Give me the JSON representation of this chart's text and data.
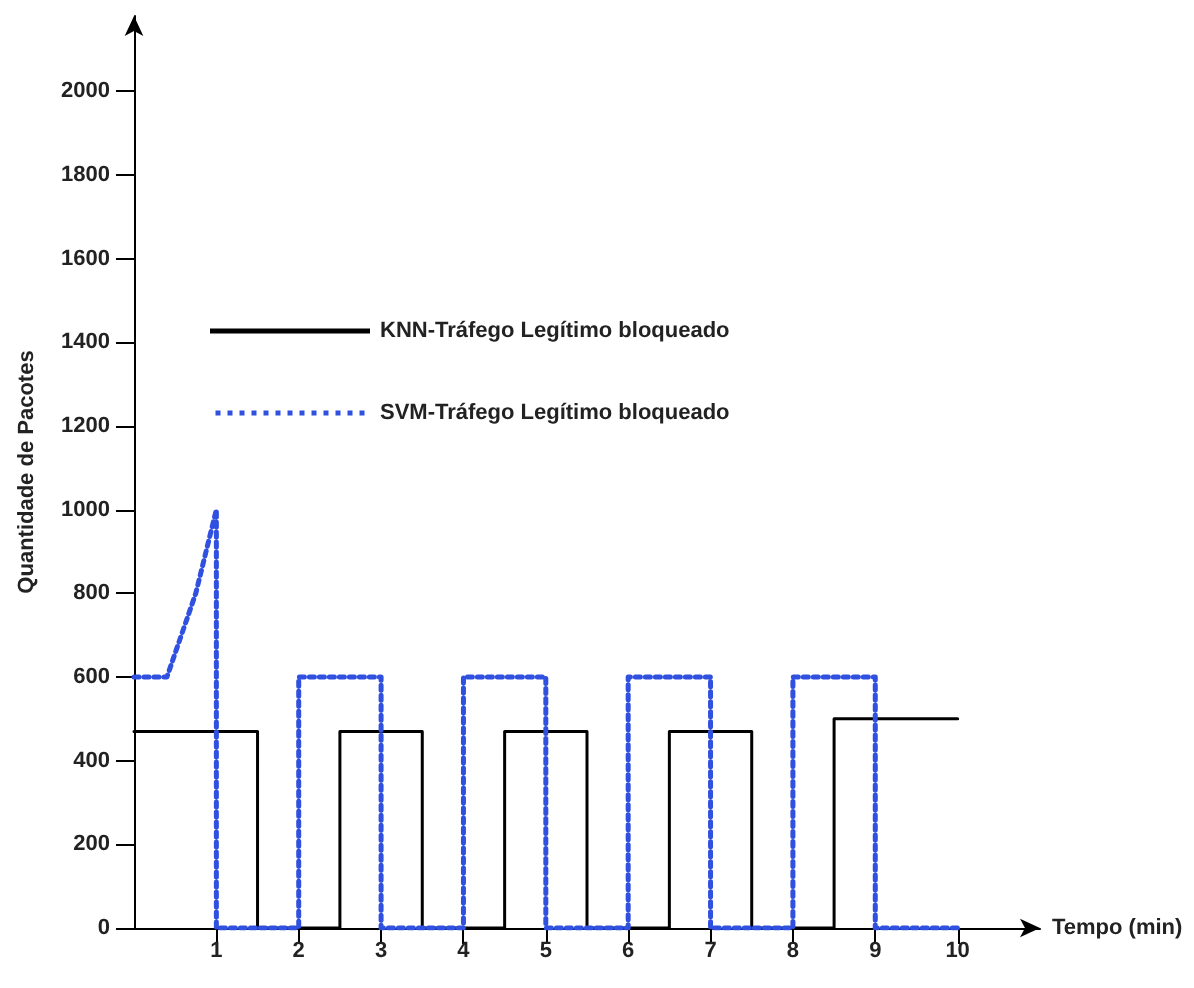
{
  "chart_data": {
    "type": "line",
    "xlabel": "Tempo (min)",
    "ylabel": "Quantidade de Pacotes",
    "series": [
      {
        "name": "KNN-Tráfego Legítimo bloqueado",
        "color": "#000000",
        "line_style": "solid",
        "x": [
          0,
          1.5,
          1.5,
          2.5,
          2.5,
          3.5,
          3.5,
          4.5,
          4.5,
          5.5,
          5.5,
          6.5,
          6.5,
          7.5,
          7.5,
          8.5,
          8.5,
          10
        ],
        "values": [
          470,
          470,
          0,
          0,
          470,
          470,
          0,
          0,
          470,
          470,
          0,
          0,
          470,
          470,
          0,
          0,
          500,
          500
        ]
      },
      {
        "name": "SVM-Tráfego Legítimo bloqueado",
        "color": "#3050e0",
        "line_style": "dotted",
        "x": [
          0,
          0.4,
          0.75,
          1,
          1,
          2,
          2,
          3,
          3,
          4,
          4,
          5,
          5,
          6,
          6,
          7,
          7,
          8,
          8,
          9,
          9,
          10
        ],
        "values": [
          600,
          600,
          800,
          1000,
          0,
          0,
          600,
          600,
          0,
          0,
          600,
          600,
          0,
          0,
          600,
          600,
          0,
          0,
          600,
          600,
          0,
          0
        ]
      }
    ],
    "xlim": [
      0,
      11
    ],
    "xticks": [
      1,
      2,
      3,
      4,
      5,
      6,
      7,
      8,
      9,
      10
    ],
    "ylim": [
      0,
      2180
    ],
    "yticks": [
      0,
      200,
      400,
      600,
      800,
      1000,
      1200,
      1400,
      1600,
      1800,
      2000
    ],
    "marker": "none",
    "grid": false,
    "legend": "top"
  }
}
